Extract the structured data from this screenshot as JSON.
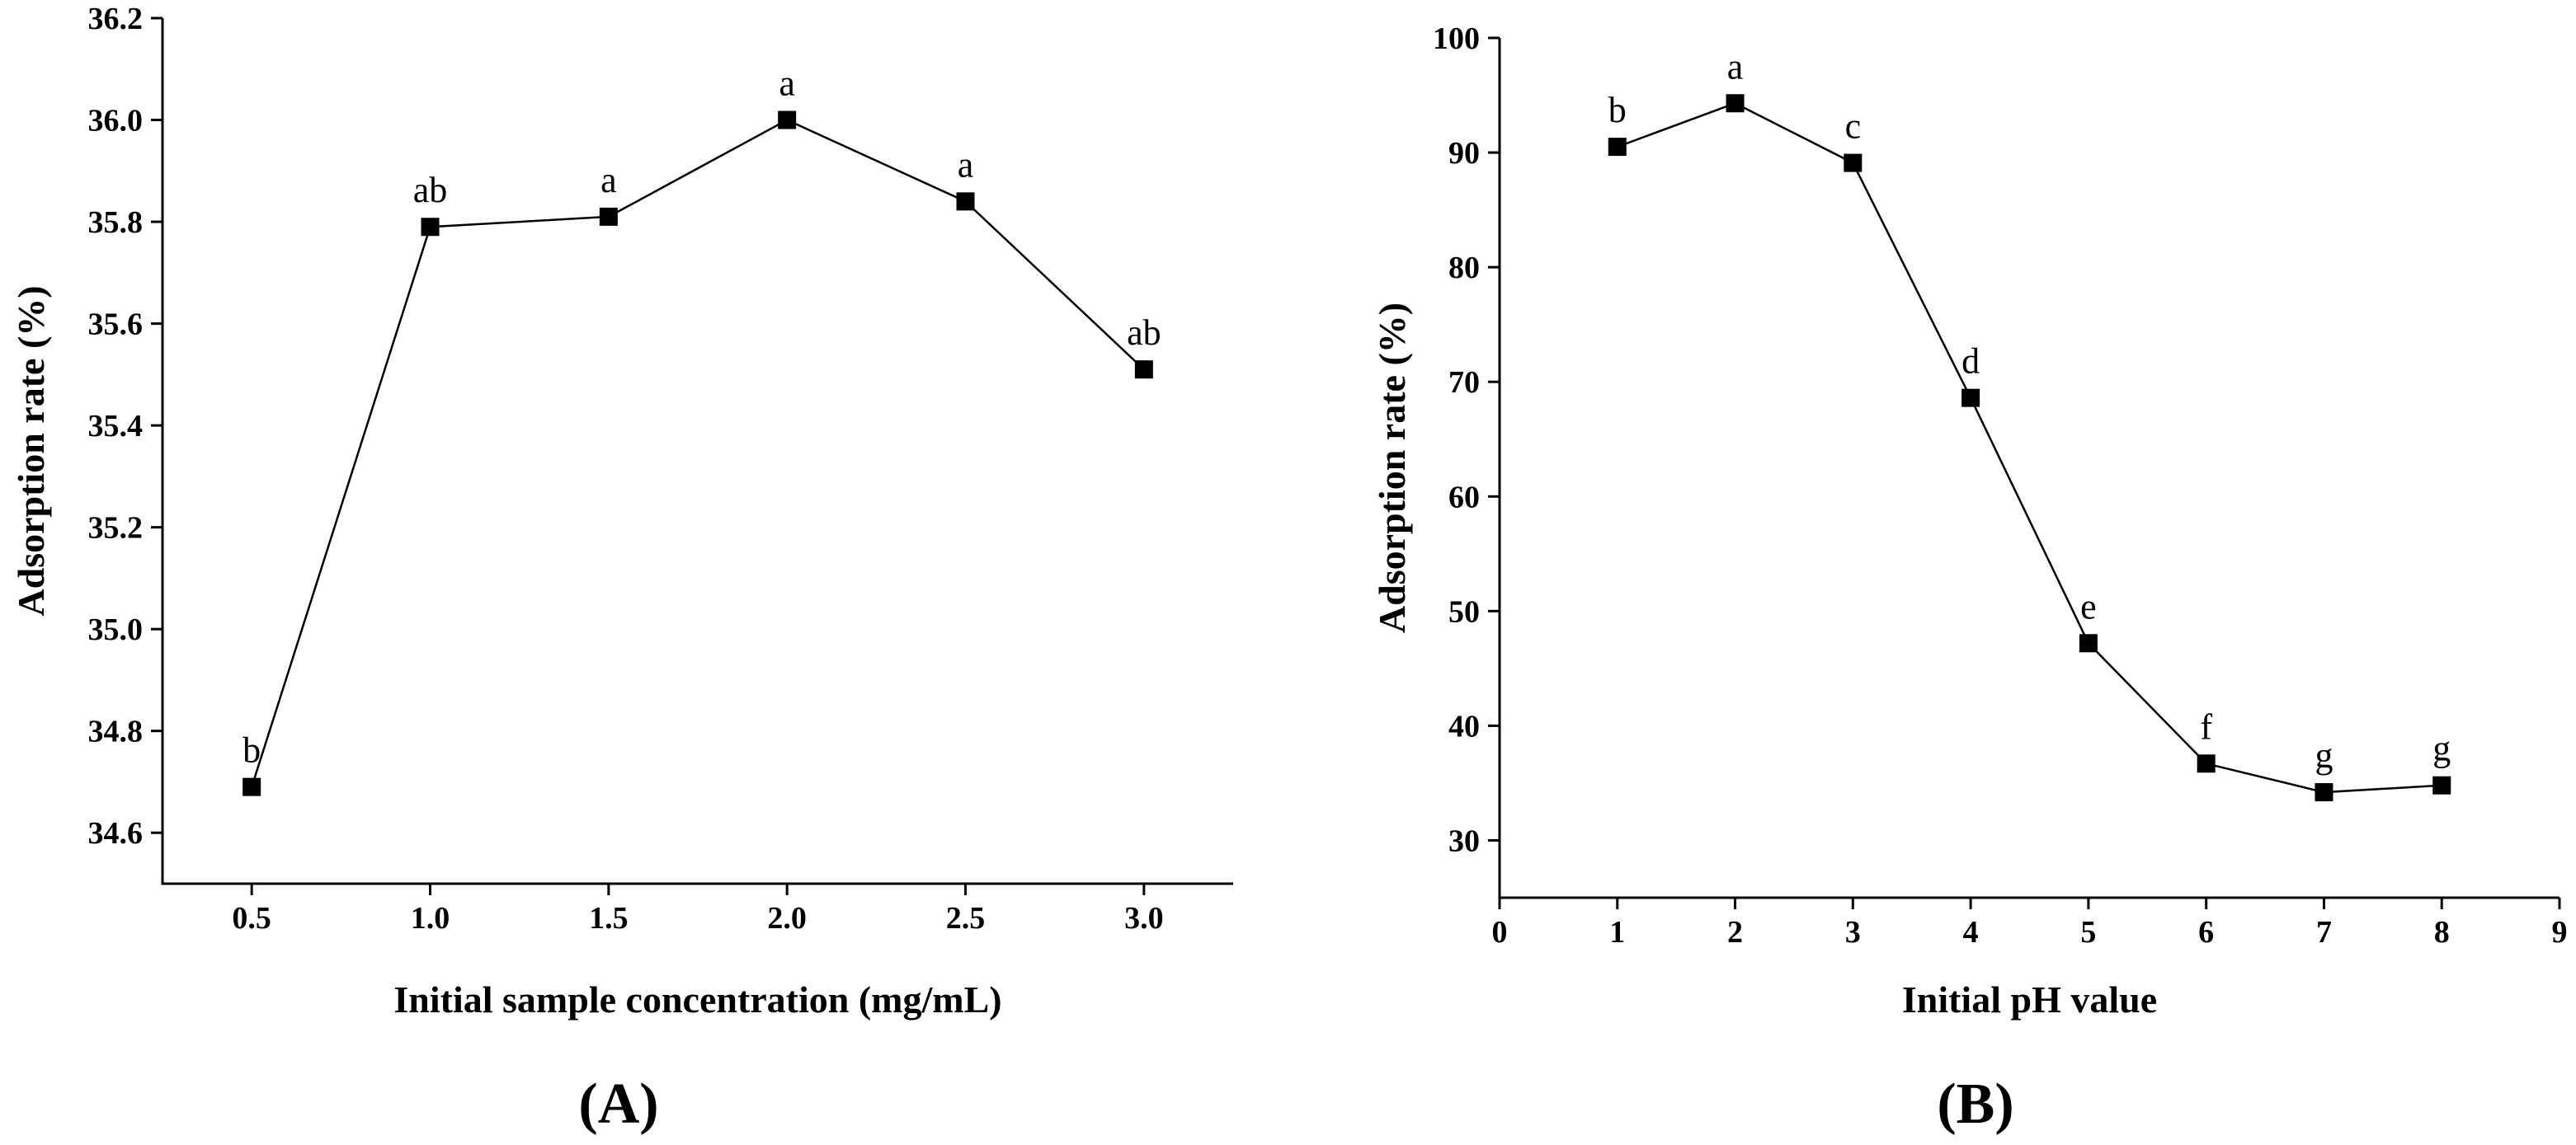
{
  "chart_data": [
    {
      "type": "line",
      "panel_label": "(A)",
      "xlabel": "Initial sample concentration (mg/mL)",
      "ylabel": "Adsorption rate (%)",
      "x": [
        0.5,
        1.0,
        1.5,
        2.0,
        2.5,
        3.0
      ],
      "x_tick_values": [
        0.5,
        1.0,
        1.5,
        2.0,
        2.5,
        3.0
      ],
      "x_tick_labels": [
        "0.5",
        "1.0",
        "1.5",
        "2.0",
        "2.5",
        "3.0"
      ],
      "xlim": [
        0.25,
        3.25
      ],
      "y_tick_values": [
        34.6,
        34.8,
        35.0,
        35.2,
        35.4,
        35.6,
        35.8,
        36.0,
        36.2
      ],
      "y_tick_labels": [
        "34.6",
        "34.8",
        "35.0",
        "35.2",
        "35.4",
        "35.6",
        "35.8",
        "36.0",
        "36.2"
      ],
      "ylim": [
        34.5,
        36.2
      ],
      "series": [
        {
          "name": "Adsorption rate",
          "values": [
            34.69,
            35.79,
            35.81,
            36.0,
            35.84,
            35.51
          ],
          "labels": [
            "b",
            "ab",
            "a",
            "a",
            "a",
            "ab"
          ]
        }
      ]
    },
    {
      "type": "line",
      "panel_label": "(B)",
      "xlabel": "Initial pH value",
      "ylabel": "Adsorption rate (%)",
      "x": [
        1,
        2,
        3,
        4,
        5,
        6,
        7,
        8
      ],
      "x_tick_values": [
        0,
        1,
        2,
        3,
        4,
        5,
        6,
        7,
        8,
        9
      ],
      "x_tick_labels": [
        "0",
        "1",
        "2",
        "3",
        "4",
        "5",
        "6",
        "7",
        "8",
        "9"
      ],
      "xlim": [
        0,
        9
      ],
      "y_tick_values": [
        30,
        40,
        50,
        60,
        70,
        80,
        90,
        100
      ],
      "y_tick_labels": [
        "30",
        "40",
        "50",
        "60",
        "70",
        "80",
        "90",
        "100"
      ],
      "ylim": [
        25,
        100
      ],
      "series": [
        {
          "name": "Adsorption rate",
          "values": [
            90.5,
            94.3,
            89.1,
            68.6,
            47.2,
            36.7,
            34.2,
            34.8
          ],
          "labels": [
            "b",
            "a",
            "c",
            "d",
            "e",
            "f",
            "g",
            "g"
          ]
        }
      ]
    }
  ]
}
